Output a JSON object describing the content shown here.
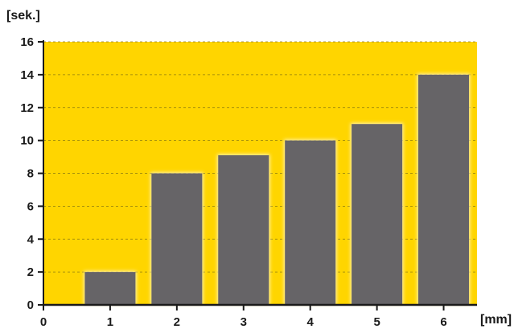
{
  "chart_data": {
    "type": "bar",
    "x": [
      1,
      2,
      3,
      4,
      5,
      6
    ],
    "values": [
      2,
      8,
      9.1,
      10,
      11,
      14
    ],
    "xticks": [
      "0",
      "1",
      "2",
      "3",
      "4",
      "5",
      "6"
    ],
    "yticks": [
      "0",
      "2",
      "4",
      "6",
      "8",
      "10",
      "12",
      "14",
      "16"
    ],
    "xlim": [
      0,
      6.5
    ],
    "ylim": [
      0,
      16
    ],
    "xlabel": "[mm]",
    "ylabel": "[sek.]",
    "title": "",
    "grid": "horizontal-dashed",
    "colors": {
      "plot_background": "#FFD500",
      "bar": "#666467",
      "bar_glow": "#FFF6C8",
      "grid": "#8C7A10",
      "axis": "#1A1A1A"
    }
  }
}
